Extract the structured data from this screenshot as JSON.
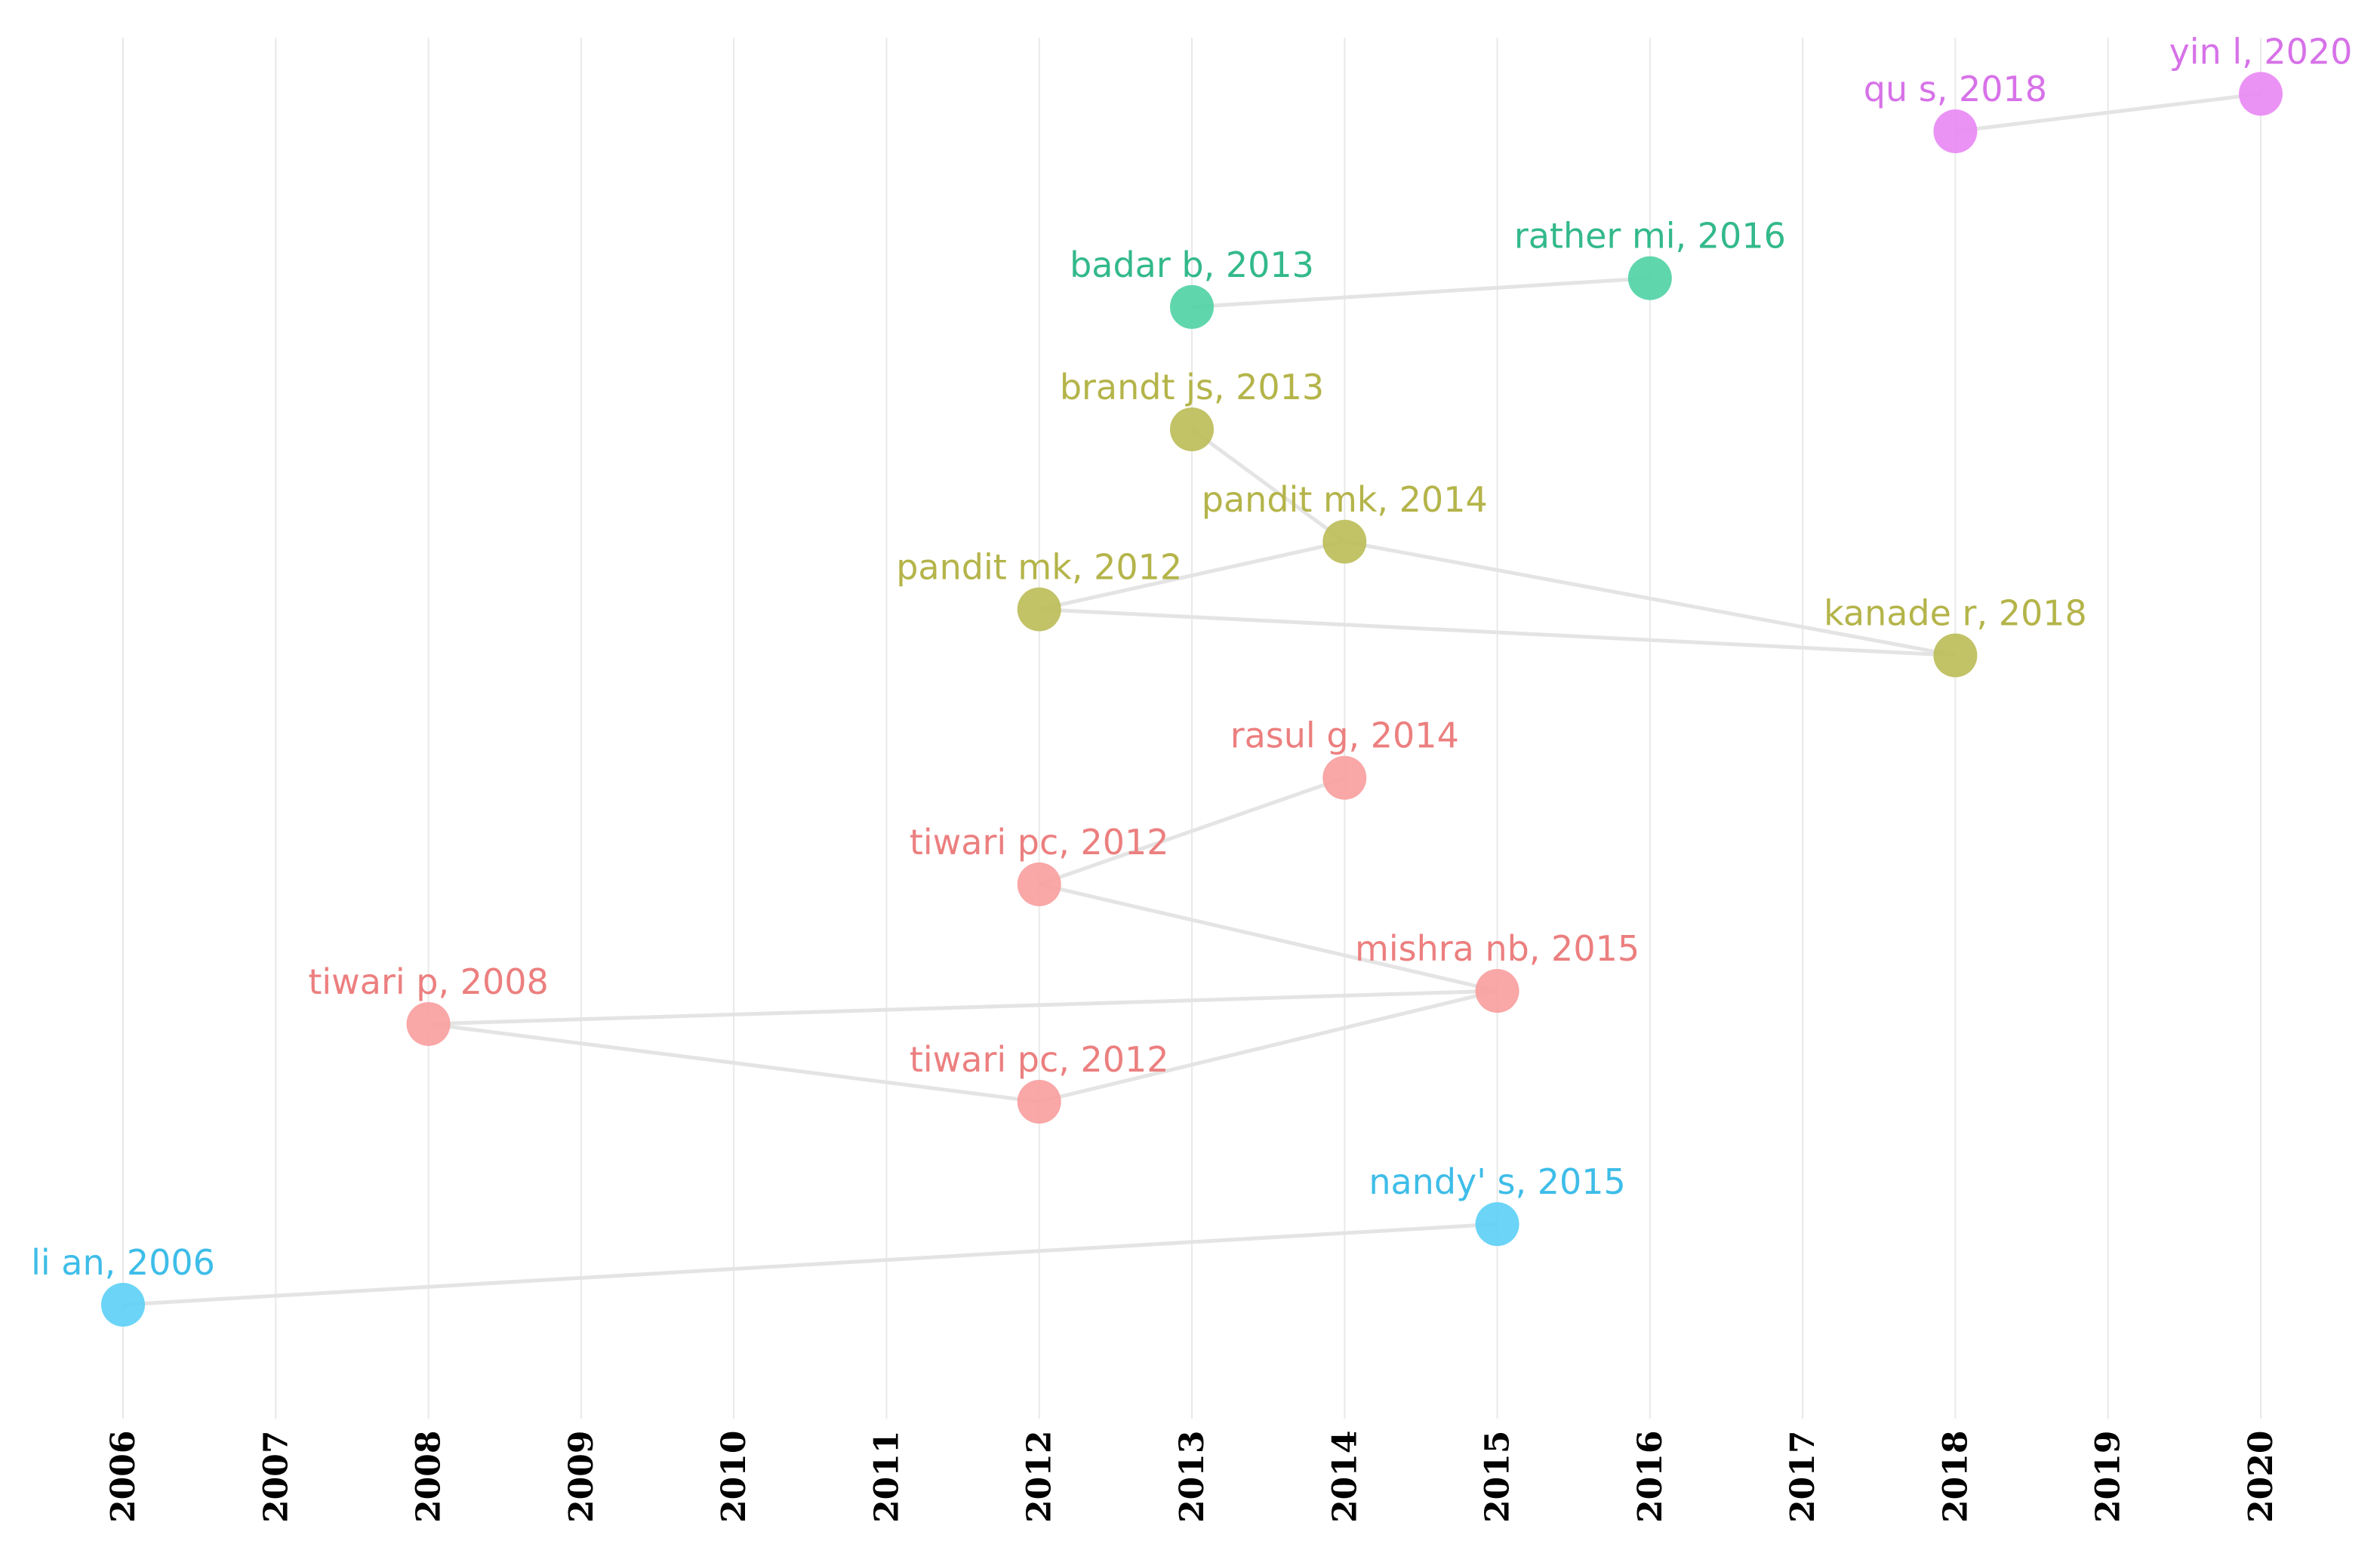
{
  "chart_data": {
    "type": "scatter",
    "title": "",
    "xlabel": "",
    "ylabel": "",
    "grid": true,
    "x_ticks": [
      2006,
      2007,
      2008,
      2009,
      2010,
      2011,
      2012,
      2013,
      2014,
      2015,
      2016,
      2017,
      2018,
      2019,
      2020
    ],
    "xlim": [
      2006,
      2020
    ],
    "ylim": [
      0,
      1
    ],
    "clusters": [
      {
        "name": "cluster-magenta",
        "color": "#e98af4",
        "text_color": "#d772e8"
      },
      {
        "name": "cluster-green",
        "color": "#52d2a6",
        "text_color": "#33b98a"
      },
      {
        "name": "cluster-olive",
        "color": "#bdbd5a",
        "text_color": "#b4b44a"
      },
      {
        "name": "cluster-red",
        "color": "#f9a0a0",
        "text_color": "#ec7f7f"
      },
      {
        "name": "cluster-blue",
        "color": "#5ed0f6",
        "text_color": "#3ebde8"
      }
    ],
    "nodes": [
      {
        "id": "yin-l-2020",
        "label": "yin l, 2020",
        "year": 2020,
        "y": 0.939,
        "cluster": 0
      },
      {
        "id": "qu-s-2018",
        "label": "qu s, 2018",
        "year": 2018,
        "y": 0.913,
        "cluster": 0
      },
      {
        "id": "rather-mi-2016",
        "label": "rather mi, 2016",
        "year": 2016,
        "y": 0.811,
        "cluster": 1
      },
      {
        "id": "badar-b-2013",
        "label": "badar b, 2013",
        "year": 2013,
        "y": 0.791,
        "cluster": 1
      },
      {
        "id": "brandt-js-2013",
        "label": "brandt js, 2013",
        "year": 2013,
        "y": 0.706,
        "cluster": 2
      },
      {
        "id": "pandit-mk-2014",
        "label": "pandit mk, 2014",
        "year": 2014,
        "y": 0.628,
        "cluster": 2
      },
      {
        "id": "pandit-mk-2012",
        "label": "pandit mk, 2012",
        "year": 2012,
        "y": 0.581,
        "cluster": 2
      },
      {
        "id": "kanade-r-2018",
        "label": "kanade r, 2018",
        "year": 2018,
        "y": 0.549,
        "cluster": 2
      },
      {
        "id": "rasul-g-2014",
        "label": "rasul g, 2014",
        "year": 2014,
        "y": 0.464,
        "cluster": 3
      },
      {
        "id": "tiwari-pc-2012-a",
        "label": "tiwari pc, 2012",
        "year": 2012,
        "y": 0.39,
        "cluster": 3
      },
      {
        "id": "mishra-nb-2015",
        "label": "mishra nb, 2015",
        "year": 2015,
        "y": 0.316,
        "cluster": 3
      },
      {
        "id": "tiwari-p-2008",
        "label": "tiwari p, 2008",
        "year": 2008,
        "y": 0.293,
        "cluster": 3
      },
      {
        "id": "tiwari-pc-2012-b",
        "label": "tiwari pc, 2012",
        "year": 2012,
        "y": 0.239,
        "cluster": 3
      },
      {
        "id": "nandy-s-2015",
        "label": "nandy' s, 2015",
        "year": 2015,
        "y": 0.154,
        "cluster": 4
      },
      {
        "id": "li-an-2006",
        "label": "li an, 2006",
        "year": 2006,
        "y": 0.098,
        "cluster": 4
      }
    ],
    "edges": [
      [
        "qu-s-2018",
        "yin-l-2020"
      ],
      [
        "badar-b-2013",
        "rather-mi-2016"
      ],
      [
        "brandt-js-2013",
        "pandit-mk-2014"
      ],
      [
        "pandit-mk-2012",
        "pandit-mk-2014"
      ],
      [
        "pandit-mk-2014",
        "kanade-r-2018"
      ],
      [
        "pandit-mk-2012",
        "kanade-r-2018"
      ],
      [
        "tiwari-pc-2012-a",
        "rasul-g-2014"
      ],
      [
        "tiwari-pc-2012-a",
        "mishra-nb-2015"
      ],
      [
        "tiwari-p-2008",
        "mishra-nb-2015"
      ],
      [
        "tiwari-p-2008",
        "tiwari-pc-2012-b"
      ],
      [
        "tiwari-pc-2012-b",
        "mishra-nb-2015"
      ],
      [
        "li-an-2006",
        "nandy-s-2015"
      ]
    ]
  }
}
